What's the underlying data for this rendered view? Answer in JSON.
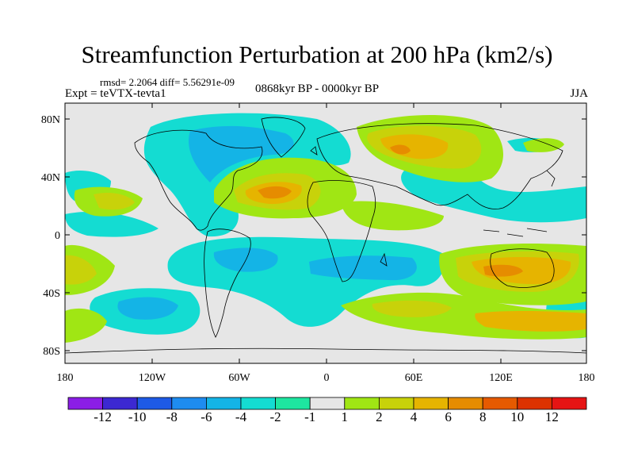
{
  "title": "Streamfunction Perturbation at 200 hPa (km2/s)",
  "stats": "rmsd= 2.2064 diff= 5.56291e-09",
  "experiment": "Expt = teVTX-tevta1",
  "period": "0868kyr BP - 0000kyr BP",
  "season": "JJA",
  "lat_ticks": [
    "80N",
    "40N",
    "0",
    "40S",
    "80S"
  ],
  "lon_ticks": [
    "180",
    "120W",
    "60W",
    "0",
    "60E",
    "120E",
    "180"
  ],
  "colorbar": {
    "labels": [
      "-12",
      "-10",
      "-8",
      "-6",
      "-4",
      "-2",
      "-1",
      "1",
      "2",
      "4",
      "6",
      "8",
      "10",
      "12"
    ],
    "colors": [
      "#8b1ee6",
      "#3c28d2",
      "#1e5ae6",
      "#1e8cf0",
      "#14b4e6",
      "#14dcd2",
      "#1ee6a0",
      "#e6e6e6",
      "#a0e614",
      "#c8d20a",
      "#e6b400",
      "#e68c00",
      "#e65a00",
      "#dc3200",
      "#e61414"
    ]
  },
  "colors": {
    "ocean": "#e6e6e6",
    "neg1": "#14dcd2",
    "neg2": "#14b4e6",
    "pos1": "#a0e614",
    "pos2": "#c8d20a",
    "pos3": "#e6b400",
    "pos4": "#e68c00"
  }
}
